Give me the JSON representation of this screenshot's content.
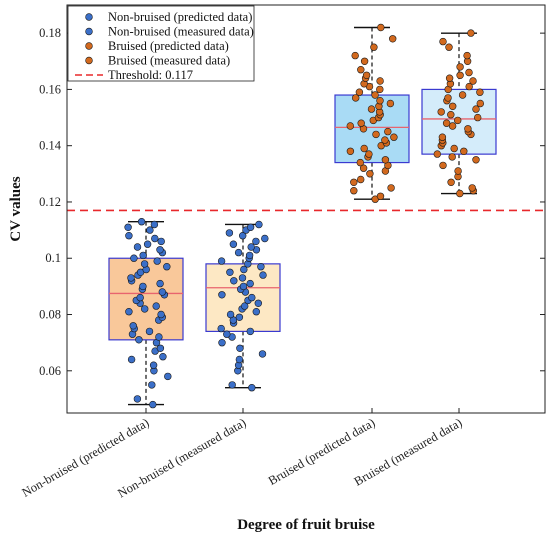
{
  "chart_data": {
    "type": "box",
    "xlabel": "Degree of fruit bruise",
    "ylabel": "CV values",
    "ylim": [
      0.045,
      0.19
    ],
    "yticks": [
      0.06,
      0.08,
      0.1,
      0.12,
      0.14,
      0.16,
      0.18
    ],
    "ytick_labels": [
      "0.06",
      "0.08",
      "0.1",
      "0.12",
      "0.14",
      "0.16",
      "0.18"
    ],
    "categories": [
      "Non-bruised (predicted data)",
      "Non-bruised (measured data)",
      "Bruised (predicted data)",
      "Bruised (measured data)"
    ],
    "threshold": {
      "value": 0.117,
      "color": "#e8282b",
      "label": "Threshold: 0.117"
    },
    "legend": {
      "position": "top-left",
      "entries": [
        {
          "label": "Non-bruised (predicted data)",
          "color": "#3b6fc8",
          "marker": "dot"
        },
        {
          "label": "Non-bruised (measured data)",
          "color": "#3b6fc8",
          "marker": "dot"
        },
        {
          "label": "Bruised (predicted data)",
          "color": "#d2691e",
          "marker": "dot"
        },
        {
          "label": "Bruised (measured data)",
          "color": "#d2691e",
          "marker": "dot"
        },
        {
          "label": "Threshold: 0.117",
          "color": "#e8282b",
          "marker": "dashed-line"
        }
      ]
    },
    "boxes": [
      {
        "category": "Non-bruised (predicted data)",
        "min": 0.048,
        "q1": 0.071,
        "median": 0.0875,
        "q3": 0.1,
        "max": 0.113,
        "fill": "#f9c89a",
        "point_color": "#3b6fc8",
        "points": [
          0.048,
          0.05,
          0.055,
          0.058,
          0.06,
          0.062,
          0.064,
          0.065,
          0.067,
          0.068,
          0.07,
          0.071,
          0.072,
          0.073,
          0.074,
          0.075,
          0.076,
          0.078,
          0.079,
          0.08,
          0.081,
          0.082,
          0.083,
          0.084,
          0.085,
          0.086,
          0.087,
          0.088,
          0.089,
          0.09,
          0.091,
          0.092,
          0.093,
          0.094,
          0.095,
          0.096,
          0.097,
          0.098,
          0.099,
          0.1,
          0.101,
          0.102,
          0.103,
          0.104,
          0.105,
          0.106,
          0.107,
          0.108,
          0.11,
          0.111,
          0.112,
          0.113
        ]
      },
      {
        "category": "Non-bruised (measured data)",
        "min": 0.054,
        "q1": 0.074,
        "median": 0.0895,
        "q3": 0.098,
        "max": 0.112,
        "fill": "#fde8c4",
        "point_color": "#3b6fc8",
        "points": [
          0.054,
          0.055,
          0.06,
          0.062,
          0.064,
          0.066,
          0.068,
          0.07,
          0.072,
          0.073,
          0.074,
          0.075,
          0.077,
          0.078,
          0.079,
          0.08,
          0.081,
          0.082,
          0.083,
          0.084,
          0.085,
          0.086,
          0.087,
          0.088,
          0.089,
          0.09,
          0.091,
          0.092,
          0.093,
          0.094,
          0.095,
          0.096,
          0.097,
          0.098,
          0.099,
          0.1,
          0.101,
          0.102,
          0.103,
          0.104,
          0.105,
          0.106,
          0.107,
          0.108,
          0.109,
          0.11,
          0.111,
          0.112
        ]
      },
      {
        "category": "Bruised (predicted data)",
        "min": 0.121,
        "q1": 0.134,
        "median": 0.1465,
        "q3": 0.158,
        "max": 0.182,
        "fill": "#a9dbf5",
        "point_color": "#d2691e",
        "points": [
          0.121,
          0.122,
          0.124,
          0.125,
          0.127,
          0.128,
          0.13,
          0.131,
          0.132,
          0.133,
          0.134,
          0.135,
          0.136,
          0.137,
          0.138,
          0.139,
          0.14,
          0.141,
          0.142,
          0.143,
          0.144,
          0.145,
          0.146,
          0.147,
          0.148,
          0.149,
          0.15,
          0.151,
          0.152,
          0.153,
          0.154,
          0.155,
          0.156,
          0.157,
          0.158,
          0.159,
          0.16,
          0.161,
          0.162,
          0.163,
          0.164,
          0.165,
          0.167,
          0.17,
          0.172,
          0.175,
          0.178,
          0.182
        ]
      },
      {
        "category": "Bruised (measured data)",
        "min": 0.123,
        "q1": 0.137,
        "median": 0.1495,
        "q3": 0.16,
        "max": 0.18,
        "fill": "#d4ecfa",
        "point_color": "#d2691e",
        "points": [
          0.123,
          0.124,
          0.125,
          0.127,
          0.129,
          0.131,
          0.133,
          0.135,
          0.136,
          0.137,
          0.138,
          0.139,
          0.14,
          0.141,
          0.142,
          0.143,
          0.144,
          0.145,
          0.146,
          0.147,
          0.148,
          0.149,
          0.15,
          0.151,
          0.152,
          0.153,
          0.154,
          0.155,
          0.156,
          0.157,
          0.158,
          0.159,
          0.16,
          0.161,
          0.162,
          0.163,
          0.164,
          0.165,
          0.166,
          0.168,
          0.17,
          0.172,
          0.175,
          0.177,
          0.18
        ]
      }
    ]
  }
}
